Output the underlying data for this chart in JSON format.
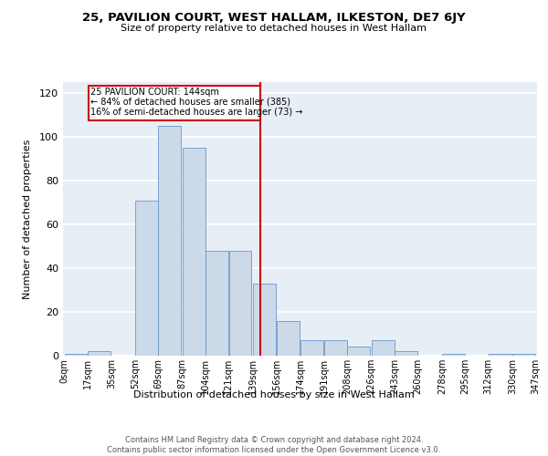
{
  "title": "25, PAVILION COURT, WEST HALLAM, ILKESTON, DE7 6JY",
  "subtitle": "Size of property relative to detached houses in West Hallam",
  "xlabel": "Distribution of detached houses by size in West Hallam",
  "ylabel": "Number of detached properties",
  "bar_color": "#ccd9e8",
  "bar_edge_color": "#6699cc",
  "background_color": "#e8eef5",
  "grid_color": "#ffffff",
  "property_line_x": 144,
  "property_line_color": "#cc0000",
  "annotation_box_color": "#cc0000",
  "annotation_line1": "25 PAVILION COURT: 144sqm",
  "annotation_line2": "← 84% of detached houses are smaller (385)",
  "annotation_line3": "16% of semi-detached houses are larger (73) →",
  "footer": "Contains HM Land Registry data © Crown copyright and database right 2024.\nContains public sector information licensed under the Open Government Licence v3.0.",
  "bin_edges": [
    0,
    17,
    35,
    52,
    69,
    87,
    104,
    121,
    139,
    156,
    174,
    191,
    208,
    226,
    243,
    260,
    278,
    295,
    312,
    330,
    347
  ],
  "bin_labels": [
    "0sqm",
    "17sqm",
    "35sqm",
    "52sqm",
    "69sqm",
    "87sqm",
    "104sqm",
    "121sqm",
    "139sqm",
    "156sqm",
    "174sqm",
    "191sqm",
    "208sqm",
    "226sqm",
    "243sqm",
    "260sqm",
    "278sqm",
    "295sqm",
    "312sqm",
    "330sqm",
    "347sqm"
  ],
  "counts": [
    1,
    2,
    0,
    71,
    105,
    95,
    48,
    48,
    33,
    16,
    7,
    7,
    4,
    7,
    2,
    0,
    1,
    0,
    1,
    1
  ],
  "ylim": [
    0,
    125
  ],
  "yticks": [
    0,
    20,
    40,
    60,
    80,
    100,
    120
  ]
}
